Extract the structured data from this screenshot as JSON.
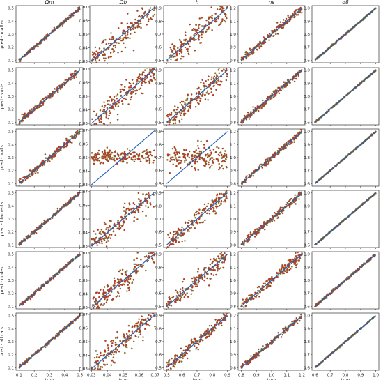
{
  "chart_data": {
    "type": "scatter",
    "columns": [
      "Ωm",
      "Ωb",
      "h",
      "ns",
      "σ8"
    ],
    "rows": [
      "pred - matter",
      "pred - voids",
      "pred - walls",
      "pred - filaments",
      "pred - nodes",
      "pred - all cats"
    ],
    "xlabel": "true",
    "ranges": [
      {
        "lim": [
          0.08,
          0.52
        ],
        "ticks": [
          0.1,
          0.2,
          0.3,
          0.4,
          0.5
        ],
        "ticklabels": [
          "0.1",
          "0.2",
          "0.3",
          "0.4",
          "0.5"
        ]
      },
      {
        "lim": [
          0.029,
          0.071
        ],
        "ticks": [
          0.03,
          0.04,
          0.05,
          0.06,
          0.07
        ],
        "ticklabels": [
          "0.03",
          "0.04",
          "0.05",
          "0.06",
          "0.07"
        ]
      },
      {
        "lim": [
          0.48,
          0.92
        ],
        "ticks": [
          0.5,
          0.6,
          0.7,
          0.8,
          0.9
        ],
        "ticklabels": [
          "0.5",
          "0.6",
          "0.7",
          "0.8",
          "0.9"
        ]
      },
      {
        "lim": [
          0.78,
          1.22
        ],
        "ticks": [
          0.8,
          0.9,
          1.0,
          1.1,
          1.2
        ],
        "ticklabels": [
          "0.8",
          "0.9",
          "1.0",
          "1.1",
          "1.2"
        ]
      },
      {
        "lim": [
          0.58,
          1.02
        ],
        "ticks": [
          0.6,
          0.7,
          0.8,
          0.9,
          1.0
        ],
        "ticklabels": [
          "0.6",
          "0.7",
          "0.8",
          "0.9",
          "1.0"
        ]
      }
    ],
    "reference_line": "y = x",
    "colors": {
      "points": "#d62728",
      "point_edge": "#2ca02c",
      "line": "#1f5fbf",
      "axes": "#333333"
    },
    "points_per_panel": 200,
    "scatter_model": {
      "note": "points are approximately y = x + noise, estimated from the figure",
      "noise_fraction_of_range": [
        [
          0.03,
          0.22,
          0.22,
          0.08,
          0.012
        ],
        [
          0.06,
          0.22,
          0.18,
          0.06,
          0.012
        ],
        [
          0.07,
          0.0,
          0.0,
          0.05,
          0.01
        ],
        [
          0.035,
          0.2,
          0.16,
          0.07,
          0.01
        ],
        [
          0.03,
          0.2,
          0.18,
          0.1,
          0.025
        ],
        [
          0.03,
          0.2,
          0.13,
          0.05,
          0.01
        ]
      ],
      "flat_panels": [
        {
          "row": 2,
          "col": 1,
          "y_center": 0.0505,
          "y_spread": 0.0025
        },
        {
          "row": 2,
          "col": 2,
          "y_center": 0.7,
          "y_spread": 0.045
        }
      ]
    }
  }
}
